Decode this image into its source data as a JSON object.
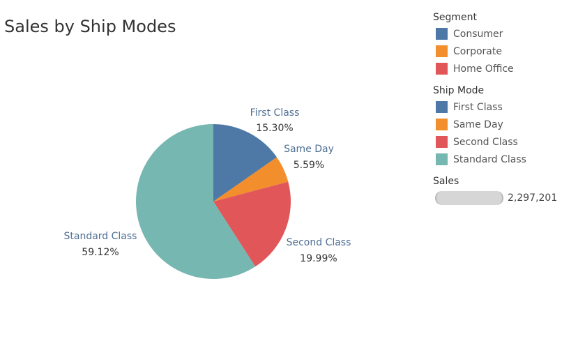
{
  "chart_data": {
    "type": "pie",
    "title": "Sales by Ship Modes",
    "slices": [
      {
        "label": "First Class",
        "percent": 15.3,
        "percent_label": "15.30%",
        "color": "#4e79a7"
      },
      {
        "label": "Same Day",
        "percent": 5.59,
        "percent_label": "5.59%",
        "color": "#f28e2b"
      },
      {
        "label": "Second Class",
        "percent": 19.99,
        "percent_label": "19.99%",
        "color": "#e15759"
      },
      {
        "label": "Standard Class",
        "percent": 59.12,
        "percent_label": "59.12%",
        "color": "#76b7b2"
      }
    ]
  },
  "legend": {
    "segment": {
      "title": "Segment",
      "items": [
        {
          "label": "Consumer",
          "color": "#4e79a7"
        },
        {
          "label": "Corporate",
          "color": "#f28e2b"
        },
        {
          "label": "Home Office",
          "color": "#e15759"
        }
      ]
    },
    "ship_mode": {
      "title": "Ship Mode",
      "items": [
        {
          "label": "First Class",
          "color": "#4e79a7"
        },
        {
          "label": "Same Day",
          "color": "#f28e2b"
        },
        {
          "label": "Second Class",
          "color": "#e15759"
        },
        {
          "label": "Standard Class",
          "color": "#76b7b2"
        }
      ]
    },
    "sales": {
      "title": "Sales",
      "value": "2,297,201"
    }
  }
}
